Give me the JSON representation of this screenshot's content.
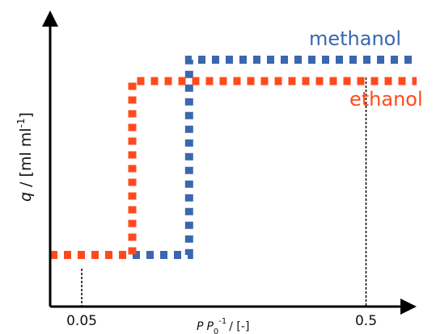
{
  "colors": {
    "axis": "#000000",
    "methanol": "#3a67ae",
    "ethanol": "#ff4b1c",
    "tick_lines": "#000000"
  },
  "chart_data": {
    "type": "line",
    "title": "",
    "xlabel": "P P0⁻¹ / [-]",
    "xlabel_parts": {
      "p": "P",
      "p0": "P",
      "sub": "0",
      "sup": "-1",
      "unit": "/ [-]"
    },
    "ylabel": "q / [ml ml-1]",
    "ylabel_parts": {
      "q": "q",
      "unit": " / [ml ml",
      "sup": "-1",
      "close": "]"
    },
    "xticks": [
      {
        "value": 0.05,
        "label": "0.05"
      },
      {
        "value": 0.5,
        "label": "0.5"
      }
    ],
    "xlim": [
      0.0,
      0.58
    ],
    "ylim": [
      0.0,
      1.0
    ],
    "grid": false,
    "series": [
      {
        "name": "methanol",
        "color": "methanol",
        "style": "dotted",
        "points": [
          [
            0.0,
            0.27
          ],
          [
            0.22,
            0.27
          ],
          [
            0.22,
            1.0
          ],
          [
            0.58,
            1.0
          ]
        ]
      },
      {
        "name": "ethanol",
        "color": "ethanol",
        "style": "dotted",
        "points": [
          [
            0.0,
            0.27
          ],
          [
            0.13,
            0.27
          ],
          [
            0.13,
            0.92
          ],
          [
            0.58,
            0.92
          ]
        ]
      }
    ]
  }
}
